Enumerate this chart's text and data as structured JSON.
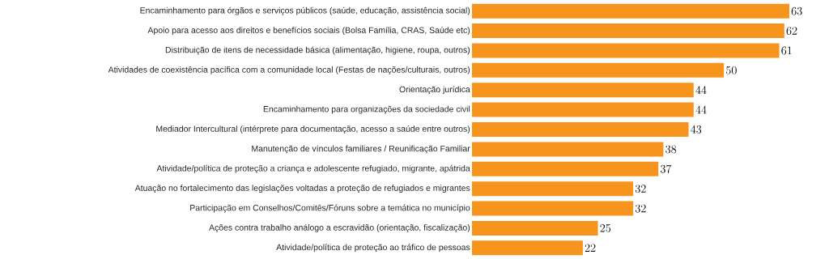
{
  "chart_data": {
    "type": "bar",
    "orientation": "horizontal",
    "data_labels": true,
    "color": "#f7941d",
    "categories": [
      "Encaminhamento para órgãos e serviços públicos (saúde, educação, assistência social)",
      "Apoio para acesso aos direitos e benefícios sociais (Bolsa Família, CRAS, Saúde etc)",
      "Distribuição de itens de necessidade básica (alimentação, higiene, roupa, outros)",
      "Atividades de coexistência pacífica com a comunidade local (Festas de nações/culturais, outros)",
      "Orientação jurídica",
      "Encaminhamento para organizações da sociedade civil",
      "Mediador Intercultural (intérprete para documentação, acesso a saúde entre outros)",
      "Manutenção de vínculos familiares / Reunificação Familiar",
      "Atividade/política de proteção a criança e adolescente refugiado, migrante, apátrida",
      "Atuação no fortalecimento das legislações voltadas a proteção de refugiados e migrantes",
      "Participação em Conselhos/Comitês/Fóruns sobre a temática no município",
      "Ações contra trabalho análogo a escravidão (orientação, fiscalização)",
      "Atividade/política de proteção ao tráfico de pessoas"
    ],
    "values": [
      63,
      62,
      61,
      50,
      44,
      44,
      43,
      38,
      37,
      32,
      32,
      25,
      22
    ]
  }
}
